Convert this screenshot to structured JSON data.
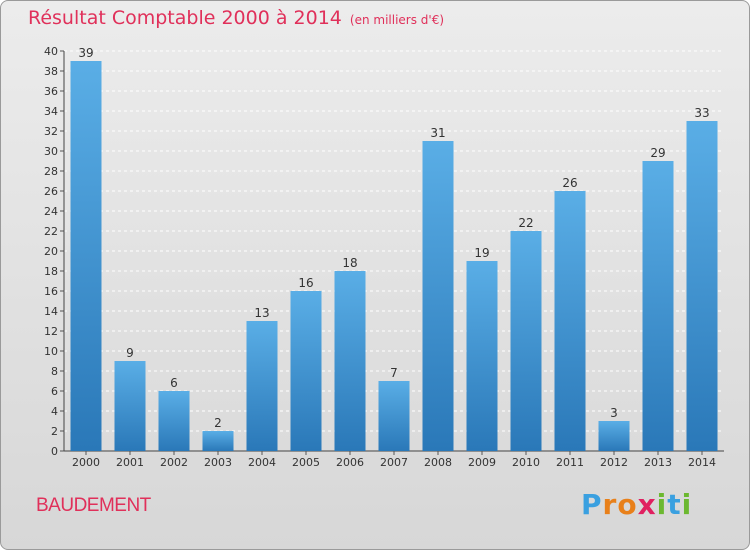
{
  "header": {
    "title": "Résultat Comptable 2000 à 2014",
    "subtitle": "(en milliers d'€)"
  },
  "footer": {
    "commune": "BAUDEMENT",
    "brand_letters": [
      "P",
      "r",
      "o",
      "x",
      "i",
      "t",
      "i"
    ],
    "brand_colors": [
      "#3aa0e0",
      "#e8801a",
      "#e8801a",
      "#e02060",
      "#6cb830",
      "#3aa0e0",
      "#6cb830"
    ]
  },
  "colors": {
    "bar_top": "#5aaee6",
    "bar_bottom": "#2a78b8",
    "title": "#e0305a"
  },
  "chart_data": {
    "type": "bar",
    "categories": [
      "2000",
      "2001",
      "2002",
      "2003",
      "2004",
      "2005",
      "2006",
      "2007",
      "2008",
      "2009",
      "2010",
      "2011",
      "2012",
      "2013",
      "2014"
    ],
    "values": [
      39,
      9,
      6,
      2,
      13,
      16,
      18,
      7,
      31,
      19,
      22,
      26,
      3,
      29,
      33
    ],
    "ylim": [
      0,
      40
    ],
    "ytick_step": 2,
    "grid": true,
    "xlabel": "",
    "ylabel": ""
  }
}
